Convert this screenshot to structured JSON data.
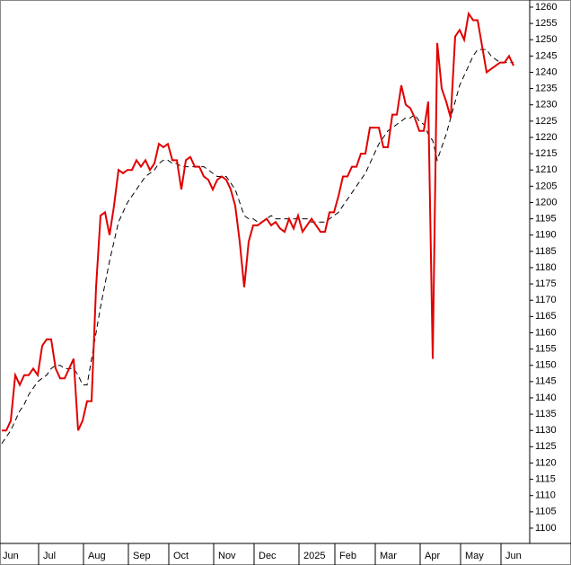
{
  "chart_data": {
    "type": "line",
    "categories": [
      "Jun",
      null,
      null,
      null,
      null,
      null,
      null,
      null,
      null,
      "Jul",
      null,
      null,
      null,
      null,
      null,
      null,
      null,
      null,
      null,
      "Aug",
      null,
      null,
      null,
      null,
      null,
      null,
      null,
      null,
      null,
      "Sep",
      null,
      null,
      null,
      null,
      null,
      null,
      null,
      null,
      "Oct",
      null,
      null,
      null,
      null,
      null,
      null,
      null,
      null,
      null,
      "Nov",
      null,
      null,
      null,
      null,
      null,
      null,
      null,
      null,
      "Dec",
      null,
      null,
      null,
      null,
      null,
      null,
      null,
      null,
      null,
      "2025",
      null,
      null,
      null,
      null,
      null,
      null,
      null,
      "Feb",
      null,
      null,
      null,
      null,
      null,
      null,
      null,
      null,
      "Mar",
      null,
      null,
      null,
      null,
      null,
      null,
      null,
      null,
      null,
      "Apr",
      null,
      null,
      null,
      null,
      null,
      null,
      null,
      null,
      "May",
      null,
      null,
      null,
      null,
      null,
      null,
      null,
      null,
      "Jun",
      null,
      null
    ],
    "series": [
      {
        "color": "#e00000",
        "style": "solid",
        "values": [
          1130,
          1130,
          1133,
          1147,
          1144,
          1147,
          1147,
          1149,
          1147,
          1156,
          1158,
          1158,
          1149,
          1146,
          1146,
          1149,
          1152,
          1130,
          1133,
          1139,
          1139,
          1174,
          1196,
          1197,
          1190,
          1199,
          1210,
          1209,
          1210,
          1210,
          1213,
          1211,
          1213,
          1210,
          1212,
          1218,
          1217,
          1218,
          1213,
          1213,
          1204,
          1213,
          1214,
          1211,
          1211,
          1208,
          1207,
          1204,
          1207,
          1208,
          1207,
          1204,
          1199,
          1188,
          1174,
          1188,
          1193,
          1193,
          1194,
          1195,
          1193,
          1194,
          1192,
          1191,
          1195,
          1192,
          1196,
          1191,
          1193,
          1195,
          1193,
          1191,
          1191,
          1197,
          1197,
          1202,
          1208,
          1208,
          1211,
          1211,
          1215,
          1215,
          1223,
          1223,
          1223,
          1217,
          1217,
          1227,
          1227,
          1236,
          1230,
          1229,
          1226,
          1222,
          1222,
          1231,
          1152,
          1249,
          1235,
          1231,
          1226,
          1251,
          1253,
          1250,
          1258,
          1256,
          1256,
          1248,
          1240,
          1241,
          1242,
          1243,
          1243,
          1245,
          1242
        ]
      },
      {
        "color": "#000000",
        "style": "dashed",
        "values": [
          1126,
          1128,
          1130,
          1133,
          1136,
          1138,
          1141,
          1143,
          1145,
          1146,
          1147,
          1149,
          1150,
          1150,
          1149,
          1149,
          1149,
          1147,
          1144,
          1144,
          1152,
          1160,
          1168,
          1175,
          1182,
          1188,
          1194,
          1197,
          1200,
          1202,
          1204,
          1206,
          1208,
          1209,
          1210,
          1212,
          1213,
          1213,
          1212,
          1212,
          1211,
          1211,
          1211,
          1211,
          1211,
          1211,
          1210,
          1209,
          1208,
          1208,
          1208,
          1206,
          1204,
          1200,
          1196,
          1195,
          1195,
          1194,
          1194,
          1195,
          1196,
          1195,
          1195,
          1195,
          1195,
          1195,
          1195,
          1195,
          1195,
          1194,
          1194,
          1194,
          1194,
          1195,
          1196,
          1197,
          1199,
          1201,
          1203,
          1205,
          1207,
          1209,
          1212,
          1215,
          1218,
          1220,
          1222,
          1223,
          1224,
          1225,
          1226,
          1226,
          1227,
          1225,
          1224,
          1221,
          1219,
          1213,
          1217,
          1221,
          1226,
          1231,
          1236,
          1239,
          1242,
          1245,
          1247,
          1247,
          1247,
          1245,
          1244,
          1243,
          1243,
          1243,
          1243
        ]
      }
    ],
    "ylim": [
      1095.3,
      1262.2
    ],
    "yticks": [
      1100,
      1105,
      1110,
      1115,
      1120,
      1125,
      1130,
      1135,
      1140,
      1145,
      1150,
      1155,
      1160,
      1165,
      1170,
      1175,
      1180,
      1185,
      1190,
      1195,
      1200,
      1205,
      1210,
      1215,
      1220,
      1225,
      1230,
      1235,
      1240,
      1245,
      1250,
      1255,
      1260
    ]
  }
}
